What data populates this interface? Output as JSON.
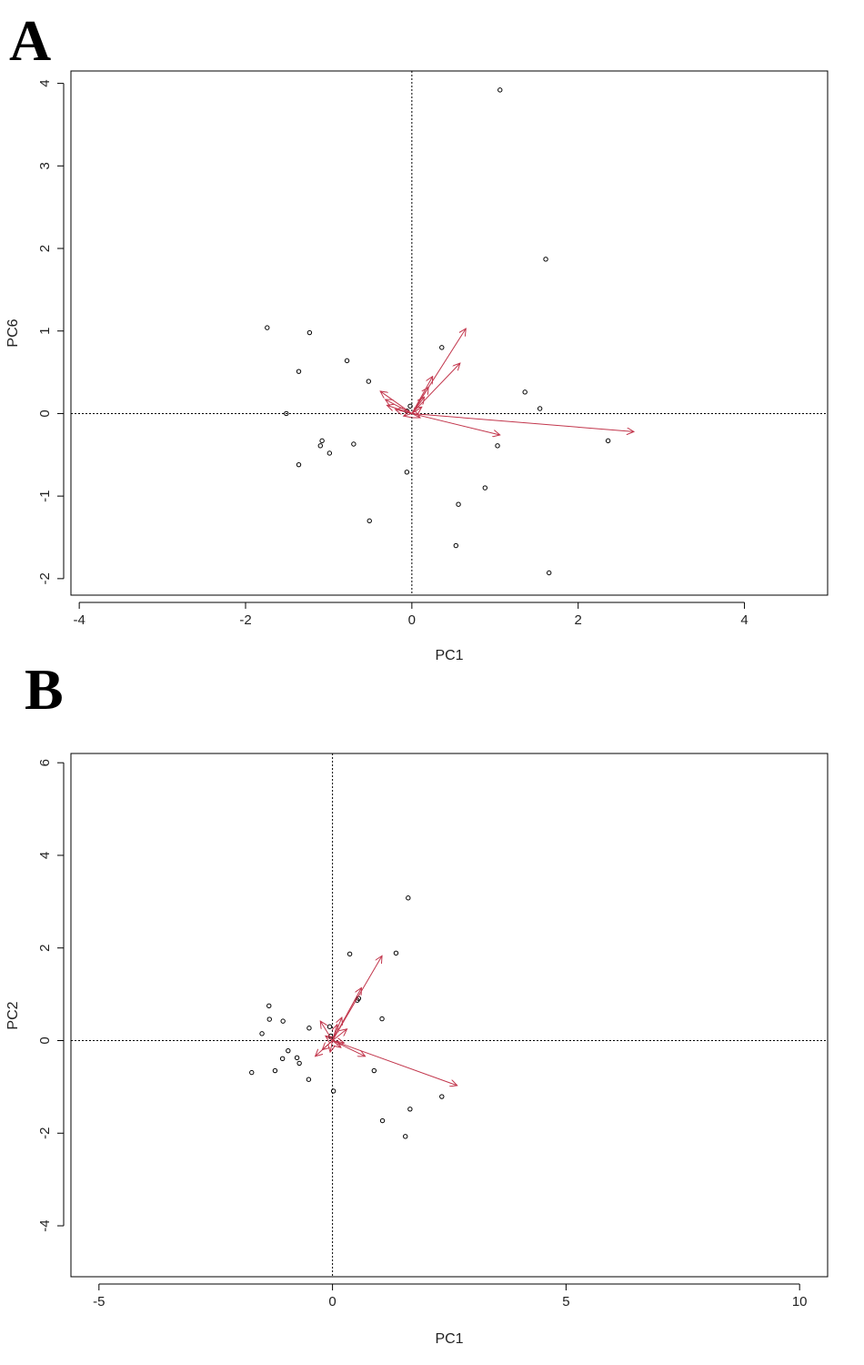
{
  "panels": [
    {
      "letter": "A",
      "xlabel": "PC1",
      "ylabel": "PC6",
      "xticks": [
        -4,
        -2,
        0,
        2,
        4
      ],
      "yticks": [
        -2,
        -1,
        0,
        1,
        2,
        3,
        4
      ]
    },
    {
      "letter": "B",
      "xlabel": "PC1",
      "ylabel": "PC2",
      "xticks": [
        -5,
        0,
        5,
        10
      ],
      "yticks": [
        -4,
        -2,
        0,
        2,
        4,
        6
      ]
    }
  ],
  "colors": {
    "points": "#000000",
    "arrows": "#c2364c",
    "axes": "#000000"
  },
  "chart_data": [
    {
      "type": "scatter",
      "subtype": "biplot",
      "xlabel": "PC1",
      "ylabel": "PC6",
      "xlim": [
        -4.1,
        5.0
      ],
      "ylim": [
        -2.2,
        4.15
      ],
      "reference_lines": [
        "x=0 dotted",
        "y=0 dotted"
      ],
      "points": [
        [
          1.06,
          3.92
        ],
        [
          1.61,
          1.87
        ],
        [
          -1.74,
          1.04
        ],
        [
          -1.23,
          0.98
        ],
        [
          0.36,
          0.8
        ],
        [
          -0.78,
          0.64
        ],
        [
          -1.36,
          0.51
        ],
        [
          -0.52,
          0.39
        ],
        [
          1.36,
          0.26
        ],
        [
          1.54,
          0.06
        ],
        [
          -0.02,
          0.09
        ],
        [
          -0.06,
          0.03
        ],
        [
          -1.51,
          0.0
        ],
        [
          2.36,
          -0.33
        ],
        [
          -1.08,
          -0.33
        ],
        [
          -1.1,
          -0.39
        ],
        [
          -0.7,
          -0.37
        ],
        [
          1.03,
          -0.39
        ],
        [
          -0.99,
          -0.48
        ],
        [
          -1.36,
          -0.62
        ],
        [
          -0.06,
          -0.71
        ],
        [
          0.88,
          -0.9
        ],
        [
          0.56,
          -1.1
        ],
        [
          -0.51,
          -1.3
        ],
        [
          0.53,
          -1.6
        ],
        [
          1.65,
          -1.93
        ]
      ],
      "arrows": [
        [
          2.67,
          -0.22
        ],
        [
          0.65,
          1.03
        ],
        [
          0.58,
          0.61
        ],
        [
          1.06,
          -0.26
        ],
        [
          0.25,
          0.45
        ],
        [
          0.2,
          0.32
        ],
        [
          -0.38,
          0.27
        ],
        [
          -0.32,
          0.17
        ],
        [
          -0.3,
          0.1
        ],
        [
          0.12,
          0.08
        ],
        [
          -0.2,
          0.05
        ],
        [
          0.1,
          -0.05
        ],
        [
          -0.1,
          -0.03
        ],
        [
          0.15,
          0.2
        ]
      ]
    },
    {
      "type": "scatter",
      "subtype": "biplot",
      "xlabel": "PC1",
      "ylabel": "PC2",
      "xlim": [
        -5.6,
        10.6
      ],
      "ylim": [
        -5.1,
        6.2
      ],
      "reference_lines": [
        "x=0 dotted",
        "y=0 dotted"
      ],
      "points": [
        [
          1.62,
          3.08
        ],
        [
          0.37,
          1.87
        ],
        [
          1.36,
          1.89
        ],
        [
          0.53,
          0.87
        ],
        [
          0.56,
          0.91
        ],
        [
          -1.36,
          0.75
        ],
        [
          -1.35,
          0.46
        ],
        [
          -1.06,
          0.42
        ],
        [
          1.06,
          0.47
        ],
        [
          -0.5,
          0.27
        ],
        [
          -0.06,
          0.3
        ],
        [
          -0.04,
          0.1
        ],
        [
          -1.51,
          0.15
        ],
        [
          -0.95,
          -0.22
        ],
        [
          -1.07,
          -0.39
        ],
        [
          -0.76,
          -0.37
        ],
        [
          -0.71,
          -0.49
        ],
        [
          -1.23,
          -0.65
        ],
        [
          -1.73,
          -0.69
        ],
        [
          0.89,
          -0.65
        ],
        [
          -0.51,
          -0.84
        ],
        [
          2.34,
          -1.21
        ],
        [
          0.02,
          -1.09
        ],
        [
          1.66,
          -1.48
        ],
        [
          1.07,
          -1.73
        ],
        [
          1.56,
          -2.07
        ]
      ],
      "arrows": [
        [
          2.67,
          -0.97
        ],
        [
          1.06,
          1.83
        ],
        [
          0.62,
          1.14
        ],
        [
          0.7,
          -0.34
        ],
        [
          -0.37,
          -0.34
        ],
        [
          -0.26,
          0.42
        ],
        [
          0.2,
          0.5
        ],
        [
          0.31,
          0.25
        ],
        [
          -0.22,
          -0.2
        ],
        [
          0.18,
          -0.15
        ],
        [
          -0.15,
          0.1
        ],
        [
          0.1,
          0.35
        ],
        [
          -0.05,
          -0.25
        ],
        [
          0.25,
          -0.05
        ]
      ]
    }
  ]
}
